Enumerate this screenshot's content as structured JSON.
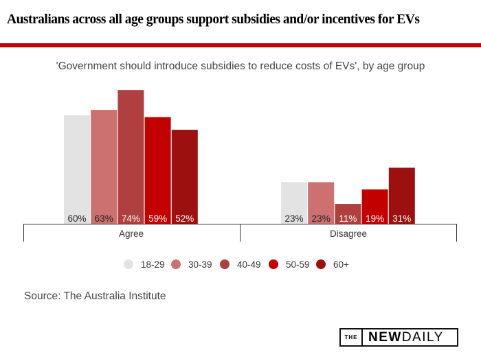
{
  "header": {
    "title": "Australians across all age groups support subsidies and/or incentives for EVs"
  },
  "chart_data": {
    "type": "bar",
    "title": "'Government should introduce subsidies to reduce costs of EVs', by age group",
    "categories": [
      "Agree",
      "Disagree"
    ],
    "series": [
      {
        "name": "18-29",
        "color": "#e3e3e3",
        "label_color": "#222222",
        "values": [
          60,
          23
        ]
      },
      {
        "name": "30-39",
        "color": "#cc7070",
        "label_color": "#222222",
        "values": [
          63,
          23
        ]
      },
      {
        "name": "40-49",
        "color": "#b04040",
        "label_color": "#ffffff",
        "values": [
          74,
          11
        ]
      },
      {
        "name": "50-59",
        "color": "#c20000",
        "label_color": "#ffffff",
        "values": [
          59,
          19
        ]
      },
      {
        "name": "60+",
        "color": "#9c1010",
        "label_color": "#ffffff",
        "values": [
          52,
          31
        ]
      }
    ],
    "unit": "%",
    "legend_position": "bottom",
    "ylim": [
      0,
      80
    ],
    "grid": false
  },
  "source": "Source: The Australia Institute",
  "logo": {
    "the": "THE",
    "new": "NEW",
    "daily": "DAILY"
  }
}
